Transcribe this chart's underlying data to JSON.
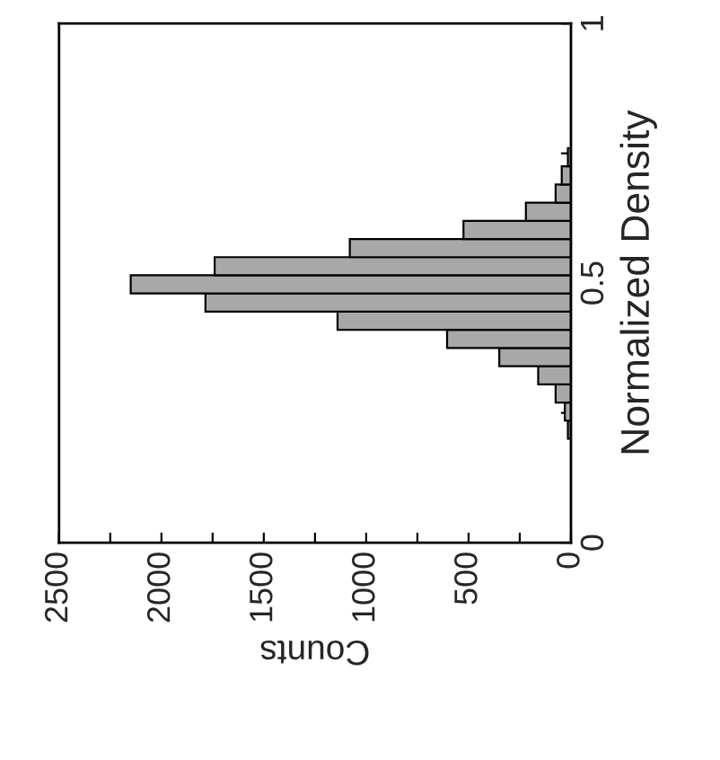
{
  "chart_data": {
    "type": "histogram",
    "orientation": "horizontal",
    "xlabel": "Counts",
    "ylabel": "Normalized Density",
    "bins": [
      0.2,
      0.235,
      0.27,
      0.305,
      0.34,
      0.375,
      0.41,
      0.445,
      0.48,
      0.515,
      0.55,
      0.585,
      0.62,
      0.655,
      0.69,
      0.725,
      0.76
    ],
    "values": [
      15,
      30,
      75,
      160,
      350,
      605,
      1140,
      1785,
      2150,
      1740,
      1080,
      525,
      220,
      75,
      45,
      15
    ],
    "color": "#a8a8a8",
    "xlim": [
      2500,
      0
    ],
    "xticks": [
      2500,
      {
        "value": 2250,
        "label": null
      },
      2000,
      {
        "value": 1750,
        "label": null
      },
      1500,
      {
        "value": 1250,
        "label": null
      },
      1000,
      {
        "value": 750,
        "label": null
      },
      500,
      {
        "value": 250,
        "label": null
      },
      0
    ],
    "ylim": [
      0,
      1
    ],
    "yticks": [
      0,
      {
        "value": 0.25,
        "label": null
      },
      0.5,
      {
        "value": 0.75,
        "label": null
      },
      1
    ],
    "grid": false,
    "legend": false
  }
}
